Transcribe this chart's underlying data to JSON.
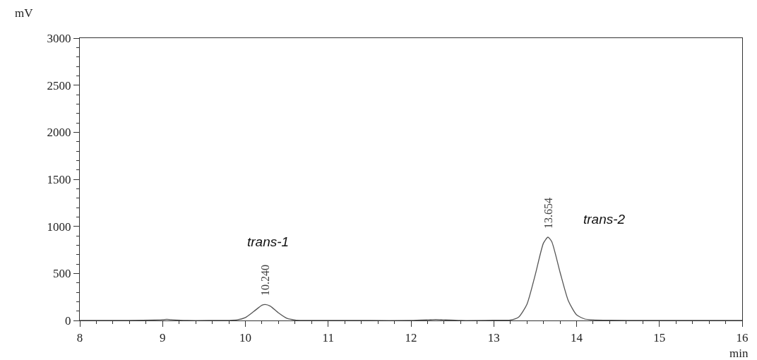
{
  "chart_data": {
    "type": "line",
    "xlabel": "min",
    "ylabel": "mV",
    "x": [
      8,
      8.5,
      9,
      9.05,
      9.1,
      9.3,
      9.6,
      9.8,
      9.9,
      10,
      10.1,
      10.2,
      10.24,
      10.3,
      10.4,
      10.5,
      10.6,
      10.7,
      10.9,
      11.5,
      12,
      12.2,
      12.3,
      12.4,
      12.6,
      13,
      13.2,
      13.3,
      13.4,
      13.5,
      13.6,
      13.654,
      13.7,
      13.8,
      13.9,
      14,
      14.1,
      14.2,
      14.4,
      14.8,
      15.5,
      16
    ],
    "series": [
      {
        "color": "#555555",
        "values": [
          0,
          0,
          8,
          12,
          8,
          0,
          0,
          1,
          6,
          31,
          95,
          162,
          170,
          153,
          80,
          23,
          5,
          1,
          0,
          0,
          0,
          6,
          10,
          6,
          0,
          2,
          5,
          36,
          171,
          483,
          822,
          885,
          838,
          514,
          210,
          60,
          15,
          6,
          2,
          0,
          0,
          0
        ]
      }
    ],
    "xlim": [
      8,
      16
    ],
    "xticks": [
      8,
      9,
      10,
      11,
      12,
      13,
      14,
      15,
      16
    ],
    "ylim": [
      0,
      3000
    ],
    "yticks": [
      0,
      500,
      1000,
      1500,
      2000,
      2500,
      3000
    ],
    "marker": "none",
    "line_style": "solid",
    "annotations": [
      {
        "text": "10.240",
        "x": 10.24,
        "y": 170
      },
      "trans-1",
      {
        "text": "13.654",
        "x": 13.654,
        "y": 885
      },
      "trans-2"
    ]
  }
}
